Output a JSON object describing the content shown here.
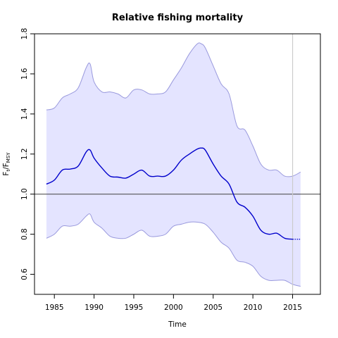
{
  "chart_data": {
    "type": "line",
    "title": "Relative fishing mortality",
    "xlabel": "Time",
    "ylabel": {
      "main": "F",
      "sub1": "t",
      "sep": "/F",
      "sub2": "MSY"
    },
    "xlim": [
      1982.5,
      2018.5
    ],
    "ylim": [
      0.5,
      1.8
    ],
    "x_ticks": [
      1985,
      1990,
      1995,
      2000,
      2005,
      2010,
      2015
    ],
    "y_ticks": [
      0.6,
      0.8,
      1.0,
      1.2,
      1.4,
      1.6,
      1.8
    ],
    "x_tick_labels": [
      "1985",
      "1990",
      "1995",
      "2000",
      "2005",
      "2010",
      "2015"
    ],
    "y_tick_labels": [
      "0.6",
      "0.8",
      "1.0",
      "1.2",
      "1.4",
      "1.6",
      "1.8"
    ],
    "reference_hline": 1.0,
    "reference_vline": 2015,
    "series": [
      {
        "role": "estimate",
        "color": "#0000cc",
        "x": [
          1984,
          1985,
          1986,
          1987,
          1988,
          1989,
          1989.5,
          1990,
          1991,
          1992,
          1993,
          1994,
          1995,
          1996,
          1997,
          1998,
          1999,
          2000,
          2001,
          2002,
          2003,
          2003.5,
          2004,
          2005,
          2006,
          2007,
          2008,
          2009,
          2010,
          2011,
          2012,
          2013,
          2014,
          2015
        ],
        "values": [
          1.05,
          1.07,
          1.12,
          1.125,
          1.14,
          1.21,
          1.22,
          1.18,
          1.13,
          1.09,
          1.085,
          1.08,
          1.1,
          1.12,
          1.09,
          1.09,
          1.09,
          1.12,
          1.17,
          1.2,
          1.225,
          1.23,
          1.22,
          1.15,
          1.09,
          1.05,
          0.96,
          0.935,
          0.89,
          0.82,
          0.8,
          0.805,
          0.78,
          0.775
        ]
      },
      {
        "role": "projection",
        "style": "dotted",
        "color": "#0000cc",
        "x": [
          2015,
          2016
        ],
        "values": [
          0.775,
          0.775
        ]
      },
      {
        "role": "upper_bound",
        "color": "#9999dd",
        "x": [
          1984,
          1985,
          1986,
          1987,
          1988,
          1989,
          1989.5,
          1990,
          1991,
          1992,
          1993,
          1994,
          1995,
          1996,
          1997,
          1998,
          1999,
          2000,
          2001,
          2002,
          2003,
          2003.5,
          2004,
          2005,
          2006,
          2007,
          2008,
          2009,
          2010,
          2011,
          2012,
          2013,
          2014,
          2015,
          2016
        ],
        "values": [
          1.42,
          1.43,
          1.48,
          1.5,
          1.53,
          1.63,
          1.65,
          1.56,
          1.51,
          1.51,
          1.5,
          1.48,
          1.52,
          1.52,
          1.5,
          1.5,
          1.51,
          1.57,
          1.63,
          1.7,
          1.75,
          1.75,
          1.73,
          1.64,
          1.55,
          1.5,
          1.34,
          1.32,
          1.24,
          1.15,
          1.12,
          1.12,
          1.09,
          1.09,
          1.11
        ]
      },
      {
        "role": "lower_bound",
        "color": "#9999dd",
        "x": [
          1984,
          1985,
          1986,
          1987,
          1988,
          1989,
          1989.5,
          1990,
          1991,
          1992,
          1993,
          1994,
          1995,
          1996,
          1997,
          1998,
          1999,
          2000,
          2001,
          2002,
          2003,
          2004,
          2005,
          2006,
          2007,
          2008,
          2009,
          2010,
          2011,
          2012,
          2013,
          2014,
          2015,
          2016
        ],
        "values": [
          0.78,
          0.8,
          0.84,
          0.84,
          0.85,
          0.89,
          0.9,
          0.86,
          0.83,
          0.79,
          0.78,
          0.78,
          0.8,
          0.82,
          0.79,
          0.79,
          0.8,
          0.84,
          0.85,
          0.86,
          0.86,
          0.85,
          0.81,
          0.76,
          0.73,
          0.67,
          0.66,
          0.64,
          0.59,
          0.57,
          0.57,
          0.57,
          0.55,
          0.54
        ]
      }
    ],
    "band_fill_color": "#e4e4ff",
    "grid": false,
    "legend": "none"
  }
}
